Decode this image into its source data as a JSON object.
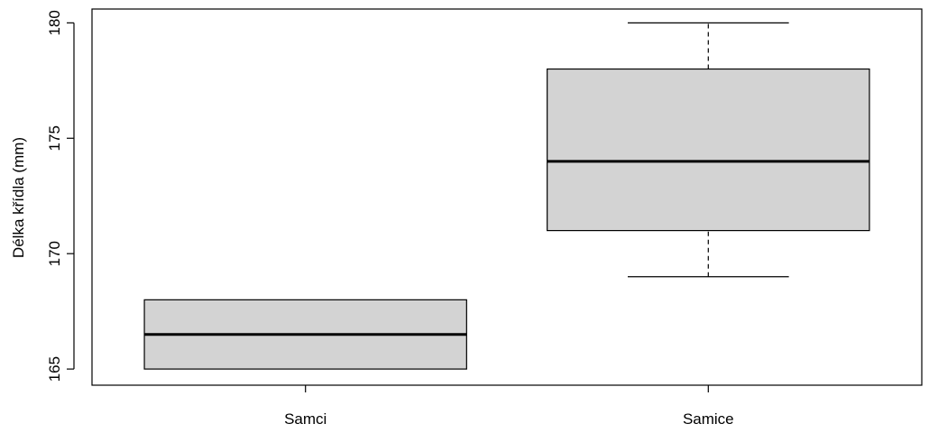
{
  "chart_data": {
    "type": "boxplot",
    "title": "",
    "xlabel": "",
    "ylabel": "Délka křídla (mm)",
    "ylim": [
      164.3,
      180.6
    ],
    "yticks": [
      165,
      170,
      175,
      180
    ],
    "grid": false,
    "categories": [
      "Samci",
      "Samice"
    ],
    "boxes": [
      {
        "category": "Samci",
        "min": 165,
        "q1": 165,
        "median": 166.5,
        "q3": 168,
        "max": 168
      },
      {
        "category": "Samice",
        "min": 169,
        "q1": 171,
        "median": 174,
        "q3": 178,
        "max": 180
      }
    ],
    "colors": {
      "box_fill": "#d3d3d3",
      "line": "#000000"
    }
  }
}
